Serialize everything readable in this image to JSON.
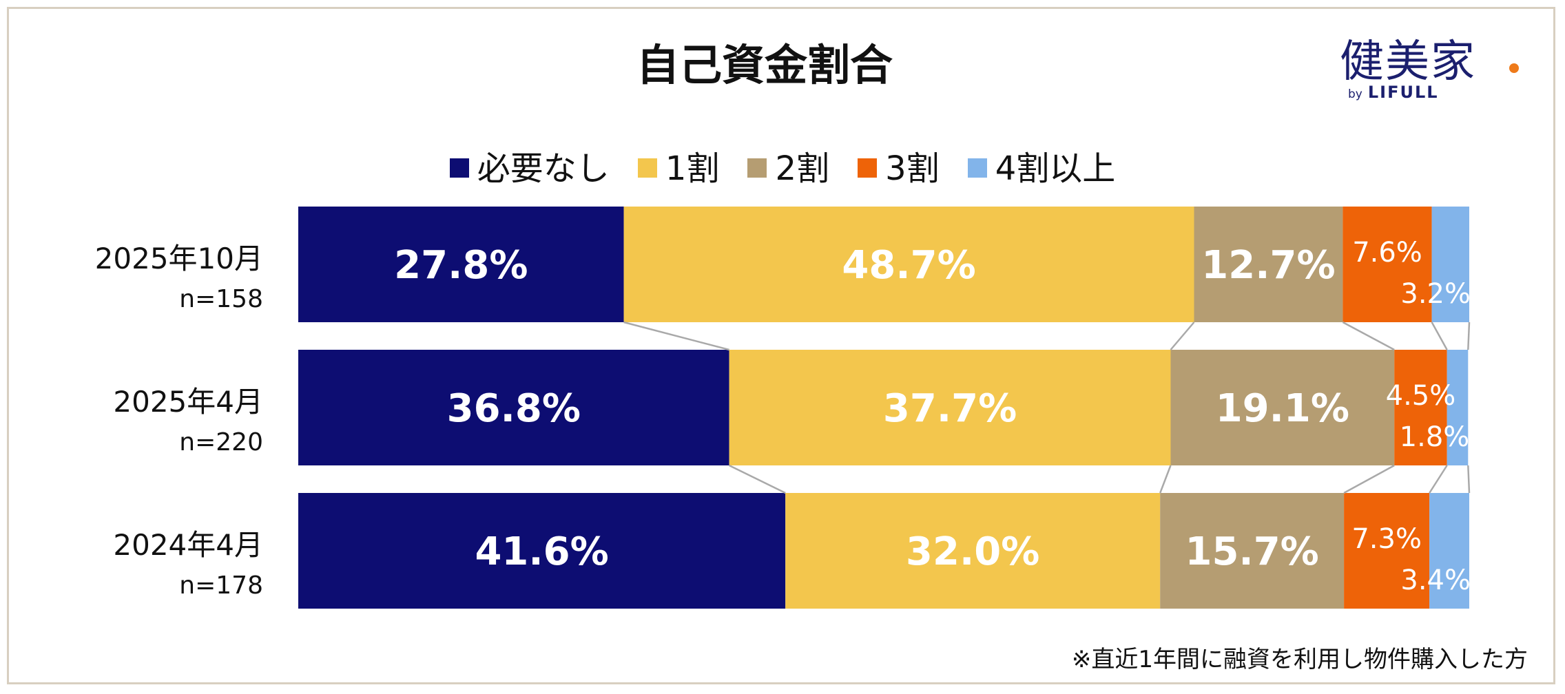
{
  "chart_data": {
    "type": "bar",
    "orientation": "horizontal-stacked-100",
    "title": "自己資金割合",
    "legend": [
      "必要なし",
      "1割",
      "2割",
      "3割",
      "4割以上"
    ],
    "legend_position": "top",
    "categories": [
      {
        "period": "2025年10月",
        "n": "n=158"
      },
      {
        "period": "2025年4月",
        "n": "n=220"
      },
      {
        "period": "2024年4月",
        "n": "n=178"
      }
    ],
    "series": [
      {
        "name": "必要なし",
        "values": [
          27.8,
          36.8,
          41.6
        ],
        "labels": [
          "27.8%",
          "36.8%",
          "41.6%"
        ]
      },
      {
        "name": "1割",
        "values": [
          48.7,
          37.7,
          32.0
        ],
        "labels": [
          "48.7%",
          "37.7%",
          "32.0%"
        ]
      },
      {
        "name": "2割",
        "values": [
          12.7,
          19.1,
          15.7
        ],
        "labels": [
          "12.7%",
          "19.1%",
          "15.7%"
        ]
      },
      {
        "name": "3割",
        "values": [
          7.6,
          4.5,
          7.3
        ],
        "labels": [
          "7.6%",
          "4.5%",
          "7.3%"
        ]
      },
      {
        "name": "4割以上",
        "values": [
          3.2,
          1.8,
          3.4
        ],
        "labels": [
          "3.2%",
          "1.8%",
          "3.4%"
        ]
      }
    ],
    "xlim": [
      0,
      100
    ],
    "grid": false,
    "note": "※直近1年間に融資を利用し物件購入した方"
  },
  "colors": {
    "series": [
      "#0d0d72",
      "#f3c64d",
      "#b59d72",
      "#ee6308",
      "#82b4ea"
    ],
    "connector": "#a9a9a9",
    "frame": "#d8cfc0",
    "logo_accent": "#ee7a1a"
  },
  "logo": {
    "main": "健美家",
    "by": "by",
    "brand": "LIFULL"
  }
}
